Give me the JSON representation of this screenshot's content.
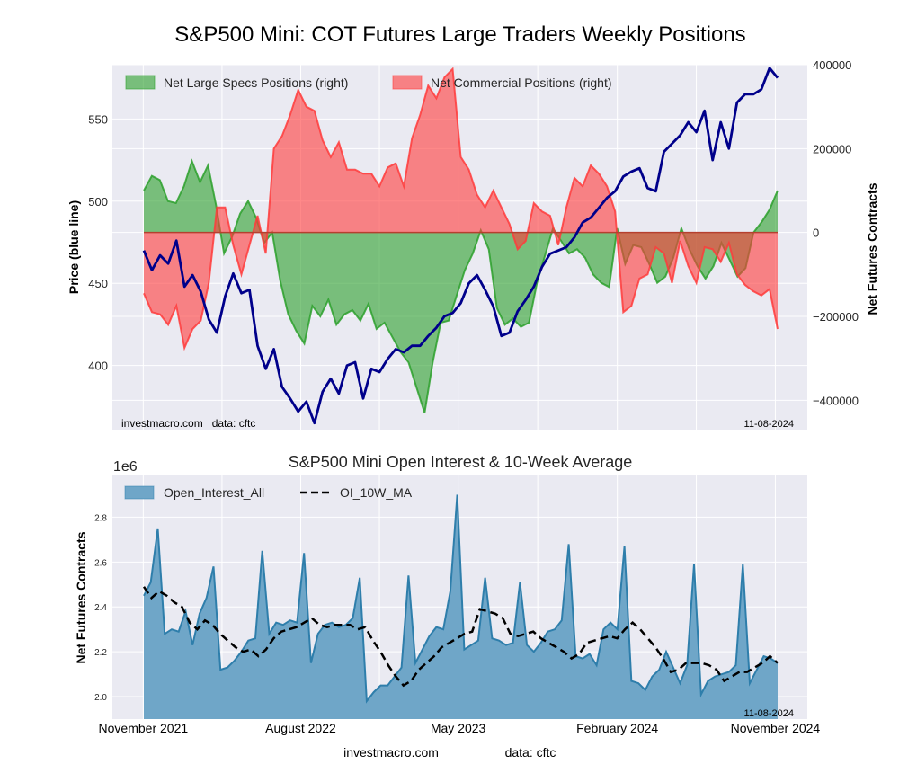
{
  "figure": {
    "title": "S&P500 Mini: COT Futures Large Traders Weekly Positions",
    "footer_site": "investmacro.com",
    "footer_source": "data: cftc"
  },
  "chart_data": [
    {
      "type": "area",
      "panel": "top",
      "title": "S&P500 Mini: COT Futures Large Traders Weekly Positions",
      "ylabel_left": "Price (blue line)",
      "ylabel_right": "Net Futures Contracts",
      "ylim_left": [
        361,
        583
      ],
      "ylim_right": [
        -470000,
        400000
      ],
      "yticks_left": [
        "400",
        "450",
        "500",
        "550"
      ],
      "yticks_right": [
        "400000",
        "200000",
        "0",
        "−200000",
        "−400000"
      ],
      "ytick_values_left": [
        400,
        450,
        500,
        550
      ],
      "ytick_values_right": [
        400000,
        200000,
        0,
        -200000,
        -400000
      ],
      "grid": true,
      "legend_position": "top-left",
      "legend": [
        "Net Large Specs Positions (right)",
        "Net Commercial Positions (right)"
      ],
      "annotation_left": "investmacro.com   data: cftc",
      "annotation_right": "11-08-2024",
      "colors": {
        "specs": "#2ca02c",
        "commercial": "#ff3b3b",
        "price": "#00008b",
        "background": "#eaeaf2"
      },
      "x_start": "2021-11-02",
      "x_end": "2024-11-05",
      "series": [
        {
          "name": "Net Large Specs Positions (right)",
          "axis": "right",
          "values": [
            100000,
            135000,
            125000,
            75000,
            70000,
            110000,
            170000,
            120000,
            160000,
            65000,
            -50000,
            -10000,
            45000,
            75000,
            35000,
            -25000,
            0,
            -115000,
            -195000,
            -235000,
            -265000,
            -175000,
            -200000,
            -160000,
            -220000,
            -195000,
            -185000,
            -210000,
            -170000,
            -230000,
            -215000,
            -250000,
            -285000,
            -310000,
            -370000,
            -430000,
            -310000,
            -215000,
            -210000,
            -150000,
            -90000,
            -50000,
            5000,
            -40000,
            -180000,
            -220000,
            -205000,
            -225000,
            -215000,
            -120000,
            -55000,
            10000,
            -20000,
            -50000,
            -40000,
            -60000,
            -100000,
            -120000,
            -130000,
            10000,
            -75000,
            -30000,
            -35000,
            -75000,
            -120000,
            -105000,
            -60000,
            10000,
            -40000,
            -80000,
            -110000,
            -80000,
            -25000,
            -65000,
            -105000,
            -85000,
            0,
            25000,
            55000,
            100000
          ]
        },
        {
          "name": "Net Commercial Positions (right)",
          "axis": "right",
          "values": [
            -145000,
            -190000,
            -195000,
            -220000,
            -175000,
            -275000,
            -230000,
            -210000,
            -120000,
            60000,
            60000,
            -30000,
            -100000,
            -30000,
            40000,
            -50000,
            200000,
            230000,
            280000,
            340000,
            300000,
            290000,
            220000,
            180000,
            215000,
            150000,
            150000,
            140000,
            140000,
            110000,
            155000,
            165000,
            110000,
            225000,
            280000,
            350000,
            320000,
            370000,
            390000,
            180000,
            150000,
            90000,
            60000,
            100000,
            60000,
            20000,
            -40000,
            -20000,
            70000,
            50000,
            40000,
            -30000,
            60000,
            130000,
            110000,
            160000,
            140000,
            110000,
            50000,
            -190000,
            -175000,
            -110000,
            -100000,
            -35000,
            -50000,
            -120000,
            -20000,
            -80000,
            -120000,
            -35000,
            -40000,
            -70000,
            -25000,
            -100000,
            -125000,
            -140000,
            -150000,
            -135000,
            -230000
          ]
        },
        {
          "name": "Price",
          "axis": "left",
          "values": [
            470,
            458,
            467,
            462,
            476,
            448,
            455,
            445,
            428,
            420,
            442,
            456,
            444,
            446,
            412,
            398,
            410,
            387,
            380,
            372,
            378,
            365,
            384,
            392,
            383,
            400,
            402,
            380,
            398,
            396,
            404,
            410,
            408,
            412,
            412,
            418,
            423,
            430,
            432,
            438,
            450,
            455,
            446,
            436,
            418,
            420,
            433,
            440,
            448,
            460,
            468,
            470,
            472,
            478,
            487,
            490,
            496,
            502,
            506,
            515,
            518,
            520,
            508,
            506,
            530,
            535,
            540,
            548,
            542,
            555,
            525,
            548,
            532,
            560,
            565,
            565,
            568,
            581,
            575
          ]
        }
      ]
    },
    {
      "type": "area",
      "panel": "bottom",
      "title": "S&P500 Mini Open Interest & 10-Week Average",
      "ylabel": "Net Futures Contracts",
      "y_scale_label": "1e6",
      "ylim": [
        1.9,
        2.99
      ],
      "yticks": [
        "2.0",
        "2.2",
        "2.4",
        "2.6",
        "2.8"
      ],
      "ytick_values": [
        2.0,
        2.2,
        2.4,
        2.6,
        2.8
      ],
      "xticks": [
        "November 2021",
        "August 2022",
        "May 2023",
        "February 2024",
        "November 2024"
      ],
      "xtick_dates": [
        "2021-11-01",
        "2022-08-01",
        "2023-05-01",
        "2024-02-01",
        "2024-11-01"
      ],
      "grid": true,
      "legend_position": "top-left",
      "legend": [
        "Open_Interest_All",
        "OI_10W_MA"
      ],
      "annotation_right": "11-08-2024",
      "colors": {
        "open_interest": "#2e7eab",
        "open_interest_fill": "#6fa6c8",
        "ma": "#000000",
        "background": "#eaeaf2"
      },
      "x_start": "2021-11-02",
      "x_end": "2024-11-05",
      "series": [
        {
          "name": "Open_Interest_All",
          "values": [
            2.45,
            2.51,
            2.75,
            2.28,
            2.3,
            2.29,
            2.38,
            2.23,
            2.37,
            2.44,
            2.58,
            2.12,
            2.13,
            2.16,
            2.2,
            2.25,
            2.26,
            2.65,
            2.28,
            2.33,
            2.32,
            2.34,
            2.33,
            2.64,
            2.15,
            2.28,
            2.32,
            2.33,
            2.31,
            2.32,
            2.35,
            2.53,
            1.98,
            2.02,
            2.05,
            2.05,
            2.09,
            2.13,
            2.54,
            2.15,
            2.21,
            2.27,
            2.31,
            2.3,
            2.47,
            2.9,
            2.21,
            2.23,
            2.25,
            2.53,
            2.26,
            2.25,
            2.23,
            2.24,
            2.51,
            2.23,
            2.2,
            2.24,
            2.29,
            2.3,
            2.34,
            2.68,
            2.18,
            2.17,
            2.19,
            2.14,
            2.3,
            2.33,
            2.3,
            2.67,
            2.07,
            2.06,
            2.03,
            2.09,
            2.12,
            2.2,
            2.13,
            2.06,
            2.14,
            2.59,
            2.01,
            2.07,
            2.09,
            2.1,
            2.11,
            2.14,
            2.59,
            2.06,
            2.12,
            2.18,
            2.17,
            2.15
          ]
        },
        {
          "name": "OI_10W_MA",
          "values": [
            2.49,
            2.44,
            2.47,
            2.45,
            2.42,
            2.4,
            2.33,
            2.3,
            2.34,
            2.32,
            2.28,
            2.25,
            2.22,
            2.2,
            2.21,
            2.18,
            2.21,
            2.26,
            2.29,
            2.3,
            2.31,
            2.33,
            2.35,
            2.32,
            2.31,
            2.32,
            2.32,
            2.32,
            2.3,
            2.31,
            2.25,
            2.2,
            2.14,
            2.09,
            2.05,
            2.07,
            2.12,
            2.15,
            2.18,
            2.22,
            2.24,
            2.26,
            2.28,
            2.29,
            2.39,
            2.38,
            2.37,
            2.35,
            2.28,
            2.27,
            2.28,
            2.29,
            2.26,
            2.24,
            2.22,
            2.2,
            2.17,
            2.19,
            2.24,
            2.25,
            2.26,
            2.27,
            2.26,
            2.3,
            2.33,
            2.3,
            2.26,
            2.22,
            2.17,
            2.11,
            2.12,
            2.15,
            2.15,
            2.15,
            2.14,
            2.12,
            2.07,
            2.09,
            2.11,
            2.11,
            2.13,
            2.15,
            2.18,
            2.15
          ]
        }
      ]
    }
  ]
}
